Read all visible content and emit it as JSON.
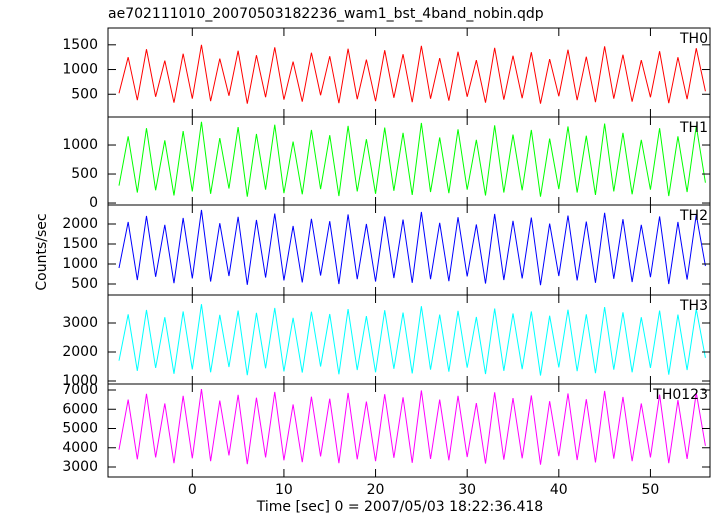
{
  "chart_data": {
    "type": "line",
    "title": "ae702111010_20070503182236_wam1_bst_4band_nobin.qdp",
    "xlabel": "Time [sec] 0 = 2007/05/03 18:22:36.418",
    "ylabel": "Counts/sec",
    "xlim": [
      -9.2,
      56.5
    ],
    "xticks": [
      0,
      10,
      20,
      30,
      40,
      50
    ],
    "x": [
      -8,
      -7,
      -6,
      -5,
      -4,
      -3,
      -2,
      -1,
      0,
      1,
      2,
      3,
      4,
      5,
      6,
      7,
      8,
      9,
      10,
      11,
      12,
      13,
      14,
      15,
      16,
      17,
      18,
      19,
      20,
      21,
      22,
      23,
      24,
      25,
      26,
      27,
      28,
      29,
      30,
      31,
      32,
      33,
      34,
      35,
      36,
      37,
      38,
      39,
      40,
      41,
      42,
      43,
      44,
      45,
      46,
      47,
      48,
      49,
      50,
      51,
      52,
      53,
      54,
      55,
      56
    ],
    "series": [
      {
        "name": "TH0",
        "color": "#ff0000",
        "ylim": [
          40,
          1840
        ],
        "yticks": [
          500,
          1000,
          1500
        ],
        "values": [
          520,
          1250,
          380,
          1410,
          450,
          1180,
          330,
          1320,
          410,
          1500,
          360,
          1220,
          470,
          1380,
          310,
          1290,
          440,
          1450,
          390,
          1160,
          350,
          1340,
          480,
          1270,
          320,
          1420,
          400,
          1200,
          360,
          1390,
          430,
          1310,
          340,
          1480,
          410,
          1230,
          370,
          1360,
          450,
          1190,
          330,
          1440,
          390,
          1280,
          420,
          1350,
          310,
          1210,
          460,
          1400,
          380,
          1260,
          340,
          1470,
          410,
          1300,
          350,
          1190,
          440,
          1370,
          320,
          1250,
          400,
          1430,
          560
        ]
      },
      {
        "name": "TH1",
        "color": "#00ff00",
        "ylim": [
          -34,
          1483
        ],
        "yticks": [
          0,
          500,
          1000
        ],
        "values": [
          300,
          1150,
          180,
          1290,
          220,
          1080,
          130,
          1240,
          200,
          1400,
          160,
          1120,
          250,
          1310,
          110,
          1190,
          230,
          1350,
          170,
          1060,
          150,
          1260,
          240,
          1170,
          120,
          1330,
          200,
          1100,
          160,
          1300,
          210,
          1210,
          140,
          1380,
          190,
          1130,
          170,
          1270,
          230,
          1090,
          130,
          1340,
          180,
          1180,
          220,
          1260,
          110,
          1110,
          240,
          1320,
          180,
          1160,
          140,
          1370,
          200,
          1210,
          150,
          1090,
          230,
          1290,
          120,
          1150,
          190,
          1330,
          350
        ]
      },
      {
        "name": "TH2",
        "color": "#0000ff",
        "ylim": [
          225,
          2475
        ],
        "yticks": [
          500,
          1000,
          1500,
          2000
        ],
        "values": [
          900,
          2050,
          600,
          2200,
          680,
          1980,
          520,
          2150,
          640,
          2350,
          560,
          2020,
          700,
          2180,
          480,
          2100,
          660,
          2260,
          590,
          1950,
          540,
          2130,
          710,
          2070,
          500,
          2240,
          620,
          2000,
          560,
          2190,
          650,
          2110,
          530,
          2300,
          620,
          2030,
          570,
          2170,
          690,
          1990,
          510,
          2250,
          600,
          2080,
          640,
          2160,
          470,
          2010,
          700,
          2210,
          590,
          2060,
          530,
          2280,
          630,
          2120,
          550,
          1980,
          670,
          2190,
          500,
          2050,
          610,
          2230,
          950
        ]
      },
      {
        "name": "TH3",
        "color": "#00ffff",
        "ylim": [
          897,
          3966
        ],
        "yticks": [
          1000,
          2000,
          3000
        ],
        "values": [
          1700,
          3300,
          1350,
          3450,
          1450,
          3200,
          1250,
          3400,
          1400,
          3650,
          1300,
          3280,
          1480,
          3430,
          1200,
          3350,
          1440,
          3520,
          1330,
          3180,
          1290,
          3390,
          1500,
          3310,
          1230,
          3480,
          1380,
          3240,
          1300,
          3440,
          1420,
          3360,
          1260,
          3580,
          1390,
          3290,
          1320,
          3420,
          1460,
          3210,
          1240,
          3500,
          1350,
          3330,
          1410,
          3400,
          1190,
          3250,
          1470,
          3460,
          1340,
          3300,
          1270,
          3550,
          1390,
          3370,
          1300,
          3200,
          1450,
          3430,
          1220,
          3290,
          1380,
          3480,
          1800
        ]
      },
      {
        "name": "TH0123",
        "color": "#ff00ff",
        "ylim": [
          2481,
          7312
        ],
        "yticks": [
          3000,
          4000,
          5000,
          6000,
          7000
        ],
        "values": [
          3900,
          6500,
          3400,
          6800,
          3500,
          6300,
          3200,
          6700,
          3450,
          7050,
          3300,
          6450,
          3600,
          6750,
          3150,
          6600,
          3500,
          6900,
          3350,
          6250,
          3250,
          6650,
          3550,
          6550,
          3200,
          6850,
          3400,
          6400,
          3300,
          6780,
          3480,
          6620,
          3220,
          6980,
          3420,
          6500,
          3350,
          6700,
          3520,
          6320,
          3180,
          6880,
          3380,
          6580,
          3450,
          6720,
          3120,
          6420,
          3560,
          6820,
          3360,
          6520,
          3240,
          6950,
          3430,
          6640,
          3300,
          6300,
          3500,
          6760,
          3200,
          6480,
          3420,
          6860,
          4100
        ]
      }
    ]
  }
}
